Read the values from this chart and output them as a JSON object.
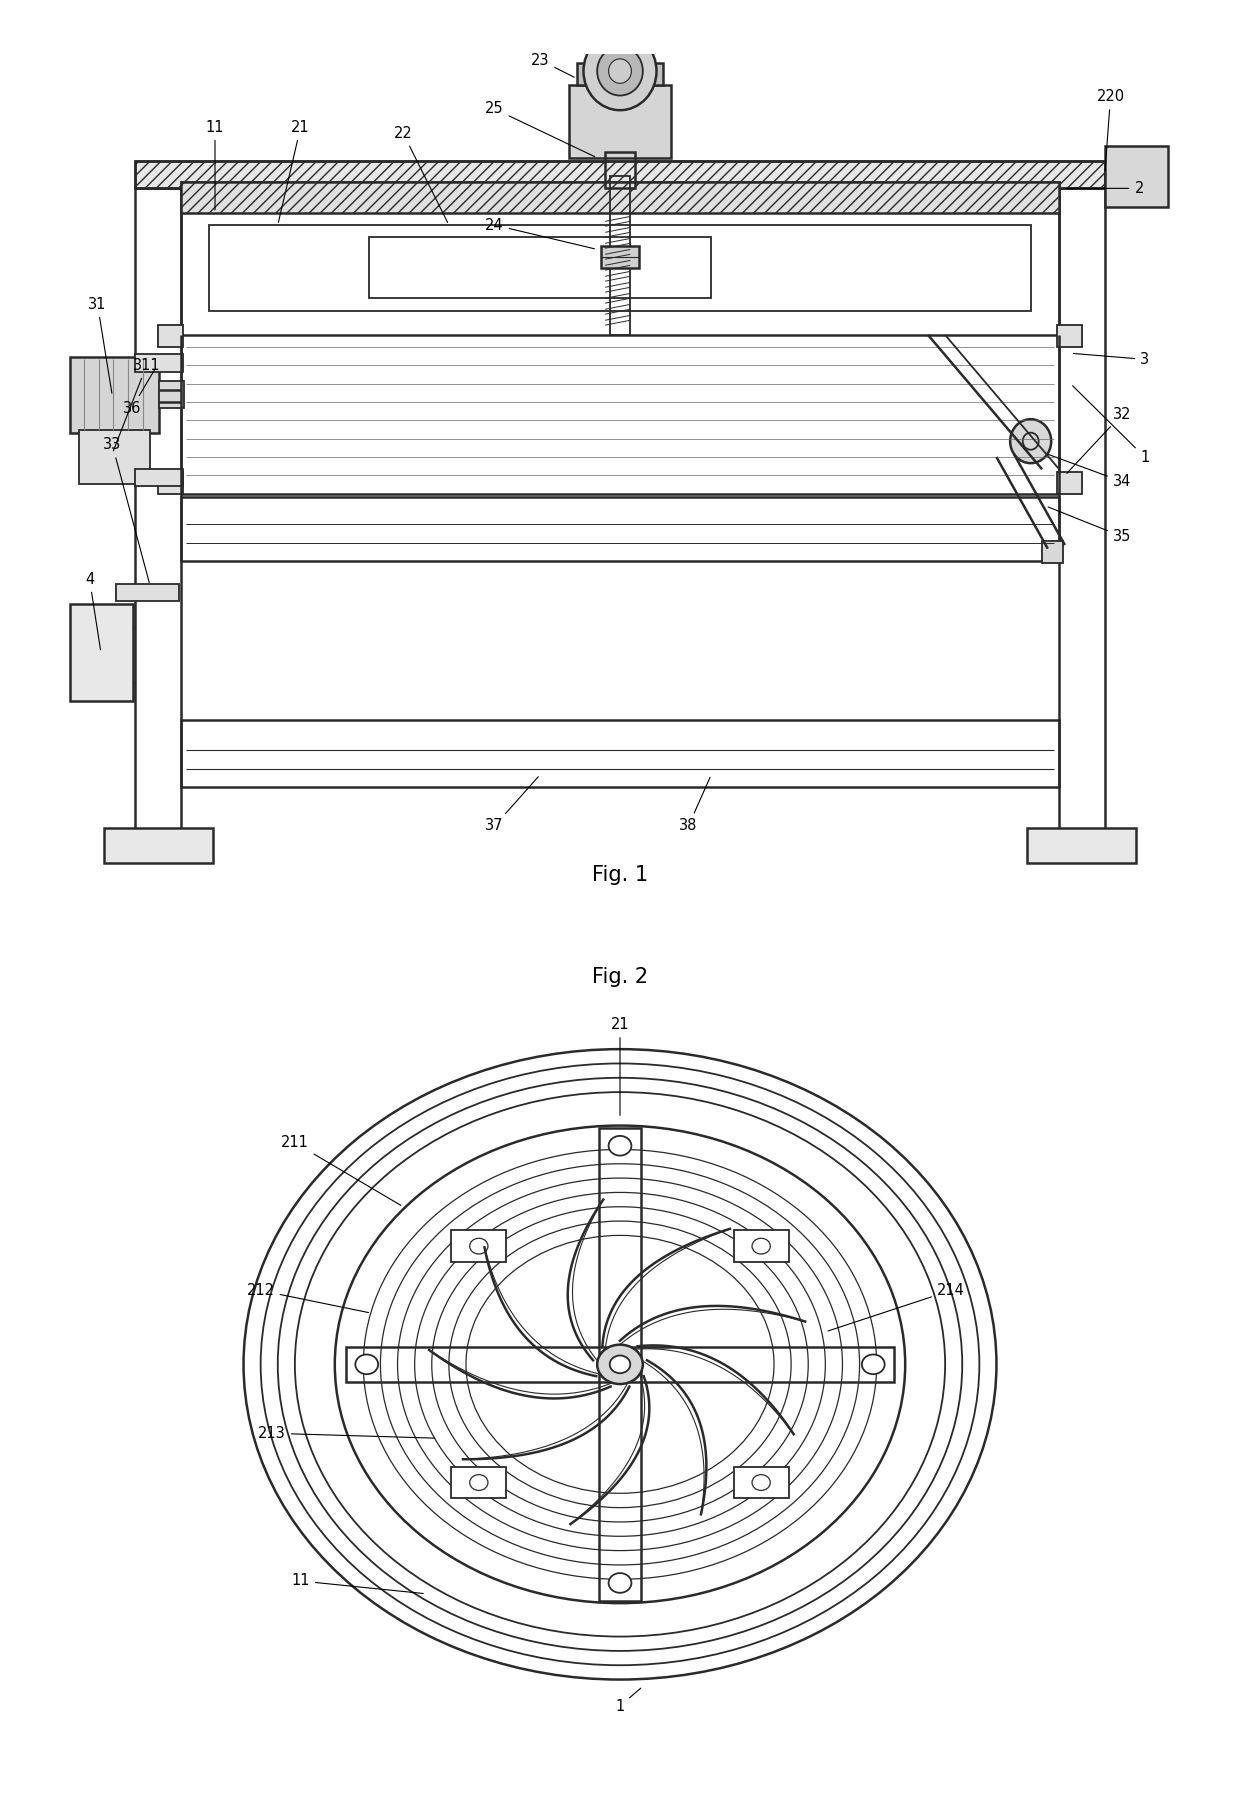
{
  "fig_width": 12.4,
  "fig_height": 18.0,
  "dpi": 100,
  "bg_color": "#ffffff",
  "line_color": "#2a2a2a",
  "line_width": 1.3
}
